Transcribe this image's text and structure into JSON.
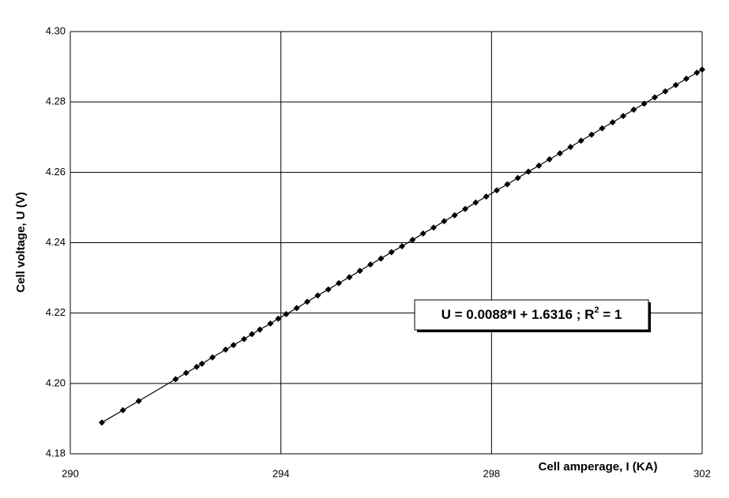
{
  "chart_data": {
    "type": "scatter",
    "x_label": "Cell amperage, I (KA)",
    "y_label": "Cell voltage, U (V)",
    "annotation": {
      "text": "U = 0.0088*I + 1.6316 ; R",
      "superscript": "2",
      "suffix": " = 1"
    },
    "xlim": [
      290,
      302
    ],
    "xticks": [
      290,
      294,
      298,
      302
    ],
    "ylim": [
      4.18,
      4.3
    ],
    "yticks": [
      4.18,
      {
        "value": 4.2,
        "label": "4.20"
      },
      4.22,
      4.24,
      4.26,
      4.28,
      {
        "value": 4.3,
        "label": "4.30"
      }
    ],
    "grid": true,
    "series": [
      {
        "color": "#000000",
        "x": [
          290.6,
          291.0,
          291.3,
          292.0,
          292.2,
          292.4,
          292.5,
          292.7,
          292.95,
          293.1,
          293.3,
          293.45,
          293.6,
          293.8,
          293.95,
          294.1,
          294.3,
          294.5,
          294.7,
          294.9,
          295.1,
          295.3,
          295.5,
          295.7,
          295.9,
          296.1,
          296.3,
          296.5,
          296.7,
          296.9,
          297.1,
          297.3,
          297.5,
          297.7,
          297.9,
          298.1,
          298.3,
          298.5,
          298.7,
          298.9,
          299.1,
          299.3,
          299.5,
          299.7,
          299.9,
          300.1,
          300.3,
          300.5,
          300.7,
          300.9,
          301.1,
          301.3,
          301.5,
          301.7,
          301.9,
          302.0
        ],
        "values": [
          4.1889,
          4.1924,
          4.195,
          4.2012,
          4.203,
          4.2047,
          4.2056,
          4.2074,
          4.2096,
          4.2109,
          4.2126,
          4.214,
          4.2153,
          4.217,
          4.2184,
          4.2197,
          4.2214,
          4.2232,
          4.225,
          4.2267,
          4.2285,
          4.2302,
          4.232,
          4.2338,
          4.2355,
          4.2373,
          4.239,
          4.2408,
          4.2426,
          4.2443,
          4.2461,
          4.2478,
          4.2496,
          4.2514,
          4.2531,
          4.2549,
          4.2566,
          4.2584,
          4.2602,
          4.2619,
          4.2637,
          4.2654,
          4.2672,
          4.269,
          4.2707,
          4.2725,
          4.2742,
          4.276,
          4.2778,
          4.2795,
          4.2813,
          4.283,
          4.2848,
          4.2866,
          4.2883,
          4.2892
        ]
      }
    ]
  }
}
